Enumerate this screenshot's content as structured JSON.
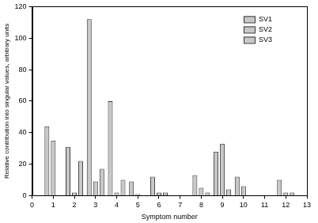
{
  "chart_data": {
    "type": "bar",
    "x_label": "Symptom number",
    "y_label": "Relative contribution into singular values, arbitrary units",
    "x": [
      1,
      2,
      3,
      4,
      5,
      6,
      7,
      8,
      9,
      10,
      11,
      12
    ],
    "series": [
      {
        "name": "SV1",
        "color": "#c8c8c8",
        "values": [
          44,
          31,
          112,
          60,
          9,
          12,
          0,
          13,
          28,
          12,
          0,
          10
        ]
      },
      {
        "name": "SV2",
        "color": "#c8c8c8",
        "values": [
          35,
          2,
          9,
          2,
          1,
          2,
          0,
          5,
          33,
          6,
          0,
          2
        ]
      },
      {
        "name": "SV3",
        "color": "#c8c8c8",
        "values": [
          0,
          22,
          17,
          10,
          0,
          2,
          0,
          2,
          4,
          0,
          0,
          2
        ]
      }
    ],
    "xlim": [
      0,
      13
    ],
    "xticks": [
      0,
      1,
      2,
      3,
      4,
      5,
      6,
      7,
      8,
      9,
      10,
      11,
      12,
      13
    ],
    "ylim": [
      0,
      120
    ],
    "yticks": [
      0,
      20,
      40,
      60,
      80,
      100,
      120
    ],
    "grid": false,
    "legend": "upper right"
  }
}
